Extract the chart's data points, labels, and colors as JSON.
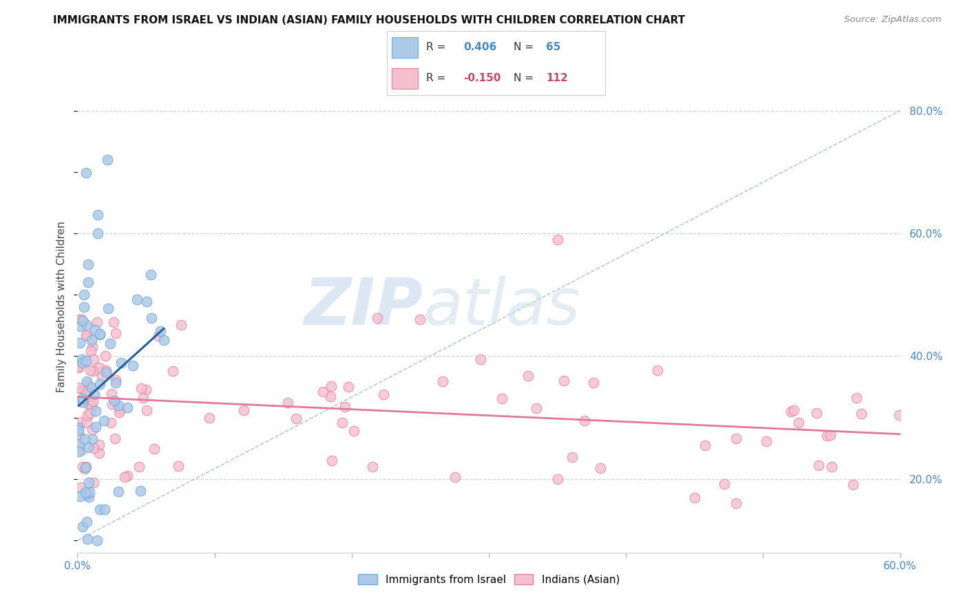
{
  "title": "IMMIGRANTS FROM ISRAEL VS INDIAN (ASIAN) FAMILY HOUSEHOLDS WITH CHILDREN CORRELATION CHART",
  "source": "Source: ZipAtlas.com",
  "ylabel": "Family Households with Children",
  "xlim": [
    0.0,
    0.6
  ],
  "ylim": [
    0.08,
    0.88
  ],
  "blue_color": "#adc9e8",
  "blue_edge_color": "#6baad8",
  "pink_color": "#f5bfcf",
  "pink_edge_color": "#e8809a",
  "blue_line_color": "#2060a0",
  "pink_line_color": "#e07898",
  "diagonal_color": "#b0c4d8",
  "grid_color": "#c8d4e0",
  "legend_label_blue": "Immigrants from Israel",
  "legend_label_pink": "Indians (Asian)",
  "watermark_zip": "ZIP",
  "watermark_atlas": "atlas",
  "blue_R_val": "0.406",
  "blue_N_val": "65",
  "pink_R_val": "-0.150",
  "pink_N_val": "112",
  "blue_R": 0.406,
  "blue_N": 65,
  "pink_R": -0.15,
  "pink_N": 112,
  "seed_blue": 42,
  "seed_pink": 77,
  "right_label_color": "#4488cc",
  "title_color": "#111111",
  "source_color": "#888888"
}
